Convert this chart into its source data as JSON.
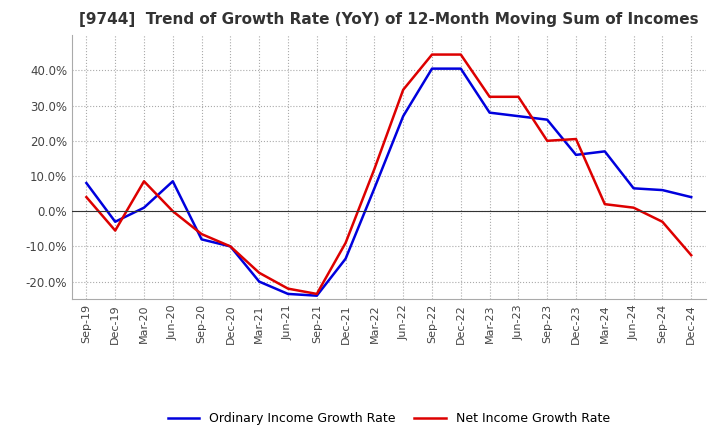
{
  "title": "[9744]  Trend of Growth Rate (YoY) of 12-Month Moving Sum of Incomes",
  "title_fontsize": 11,
  "background_color": "#ffffff",
  "grid_color": "#aaaaaa",
  "x_labels": [
    "Sep-19",
    "Dec-19",
    "Mar-20",
    "Jun-20",
    "Sep-20",
    "Dec-20",
    "Mar-21",
    "Jun-21",
    "Sep-21",
    "Dec-21",
    "Mar-22",
    "Jun-22",
    "Sep-22",
    "Dec-22",
    "Mar-23",
    "Jun-23",
    "Sep-23",
    "Dec-23",
    "Mar-24",
    "Jun-24",
    "Sep-24",
    "Dec-24"
  ],
  "ordinary_income": [
    0.08,
    -0.03,
    0.01,
    0.085,
    -0.08,
    -0.1,
    -0.2,
    -0.235,
    -0.24,
    -0.135,
    0.065,
    0.27,
    0.405,
    0.405,
    0.28,
    0.27,
    0.26,
    0.16,
    0.17,
    0.065,
    0.06,
    0.04
  ],
  "net_income": [
    0.04,
    -0.055,
    0.085,
    0.0,
    -0.065,
    -0.1,
    -0.175,
    -0.22,
    -0.235,
    -0.09,
    0.12,
    0.345,
    0.445,
    0.445,
    0.325,
    0.325,
    0.2,
    0.205,
    0.02,
    0.01,
    -0.03,
    -0.125
  ],
  "ylim": [
    -0.25,
    0.5
  ],
  "yticks": [
    -0.2,
    -0.1,
    0.0,
    0.1,
    0.2,
    0.3,
    0.4
  ],
  "ordinary_color": "#0000dd",
  "net_color": "#dd0000",
  "legend_ordinary": "Ordinary Income Growth Rate",
  "legend_net": "Net Income Growth Rate"
}
